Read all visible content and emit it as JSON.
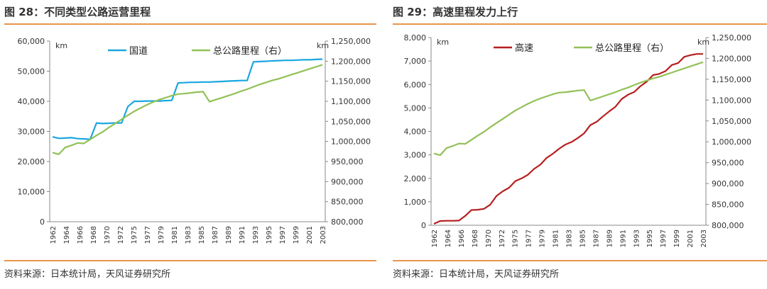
{
  "charts": [
    {
      "title": "图 28：不同类型公路运营里程",
      "source": "资料来源：日本统计局，天风证券研究所",
      "chart_data": {
        "type": "line",
        "left_unit": "km",
        "right_unit": "km",
        "ylim_left": [
          0,
          60000
        ],
        "ylim_right": [
          800000,
          1250000
        ],
        "yticks_left": [
          "0",
          "10,000",
          "20,000",
          "30,000",
          "40,000",
          "50,000",
          "60,000"
        ],
        "yticks_right": [
          "800,000",
          "850,000",
          "900,000",
          "950,000",
          "1,000,000",
          "1,050,000",
          "1,100,000",
          "1,150,000",
          "1,200,000",
          "1,250,000"
        ],
        "x_tick_labels": [
          "1962",
          "1964",
          "1966",
          "1968",
          "1970",
          "1972",
          "1975",
          "1977",
          "1979",
          "1981",
          "1983",
          "1985",
          "1987",
          "1989",
          "1991",
          "1993",
          "1995",
          "1997",
          "1999",
          "2001",
          "2003"
        ],
        "legend_position": "top",
        "grid": false,
        "series": [
          {
            "name": "国道",
            "axis": "left",
            "color": "#1aa7e0",
            "values": [
              28200,
              27700,
              27800,
              27900,
              27600,
              27500,
              27400,
              32800,
              32600,
              32700,
              32800,
              32800,
              38200,
              40000,
              40000,
              40100,
              40100,
              40100,
              40200,
              40300,
              46100,
              46200,
              46300,
              46300,
              46400,
              46400,
              46500,
              46600,
              46700,
              46800,
              46900,
              46900,
              53100,
              53200,
              53300,
              53400,
              53500,
              53600,
              53600,
              53700,
              53800,
              53800,
              53900,
              54000
            ]
          },
          {
            "name": "总公路里程（右）",
            "axis": "right",
            "color": "#92c157",
            "values": [
              972000,
              968000,
              985000,
              990000,
              996000,
              995000,
              1005000,
              1015000,
              1024000,
              1035000,
              1045000,
              1055000,
              1065000,
              1075000,
              1083000,
              1091000,
              1098000,
              1104000,
              1109000,
              1114000,
              1118000,
              1119000,
              1121000,
              1123000,
              1124000,
              1099000,
              1104000,
              1109000,
              1114000,
              1119000,
              1125000,
              1130000,
              1136000,
              1142000,
              1147000,
              1152000,
              1156000,
              1161000,
              1166000,
              1171000,
              1176000,
              1181000,
              1186000,
              1191000
            ]
          }
        ]
      }
    },
    {
      "title": "图 29：高速里程发力上行",
      "source": "资料来源：日本统计局，天风证券研究所",
      "chart_data": {
        "type": "line",
        "left_unit": "km",
        "right_unit": "km",
        "ylim_left": [
          0,
          8000
        ],
        "ylim_right": [
          800000,
          1250000
        ],
        "yticks_left": [
          "0",
          "1,000",
          "2,000",
          "3,000",
          "4,000",
          "5,000",
          "6,000",
          "7,000",
          "8,000"
        ],
        "yticks_right": [
          "800,000",
          "850,000",
          "900,000",
          "950,000",
          "1,000,000",
          "1,050,000",
          "1,100,000",
          "1,150,000",
          "1,200,000",
          "1,250,000"
        ],
        "x_tick_labels": [
          "1962",
          "1964",
          "1966",
          "1968",
          "1970",
          "1972",
          "1975",
          "1977",
          "1979",
          "1981",
          "1983",
          "1985",
          "1987",
          "1989",
          "1991",
          "1993",
          "1995",
          "1997",
          "1999",
          "2001",
          "2003"
        ],
        "legend_position": "top",
        "grid": false,
        "series": [
          {
            "name": "高速",
            "axis": "left",
            "color": "#b71f1f",
            "values": [
              60,
              180,
              190,
              190,
              200,
              400,
              650,
              660,
              700,
              880,
              1250,
              1450,
              1600,
              1880,
              2000,
              2150,
              2400,
              2580,
              2870,
              3050,
              3260,
              3440,
              3550,
              3720,
              3920,
              4270,
              4410,
              4640,
              4850,
              5050,
              5380,
              5560,
              5680,
              5930,
              6120,
              6400,
              6450,
              6570,
              6830,
              6910,
              7180,
              7250,
              7300,
              7300
            ]
          },
          {
            "name": "总公路里程（右）",
            "axis": "right",
            "color": "#92c157",
            "values": [
              972000,
              968000,
              985000,
              990000,
              996000,
              995000,
              1005000,
              1015000,
              1024000,
              1035000,
              1045000,
              1055000,
              1065000,
              1075000,
              1083000,
              1091000,
              1098000,
              1104000,
              1109000,
              1114000,
              1118000,
              1119000,
              1121000,
              1123000,
              1124000,
              1099000,
              1104000,
              1109000,
              1114000,
              1119000,
              1125000,
              1130000,
              1136000,
              1142000,
              1147000,
              1152000,
              1156000,
              1161000,
              1166000,
              1171000,
              1176000,
              1181000,
              1186000,
              1191000
            ]
          }
        ]
      }
    }
  ]
}
